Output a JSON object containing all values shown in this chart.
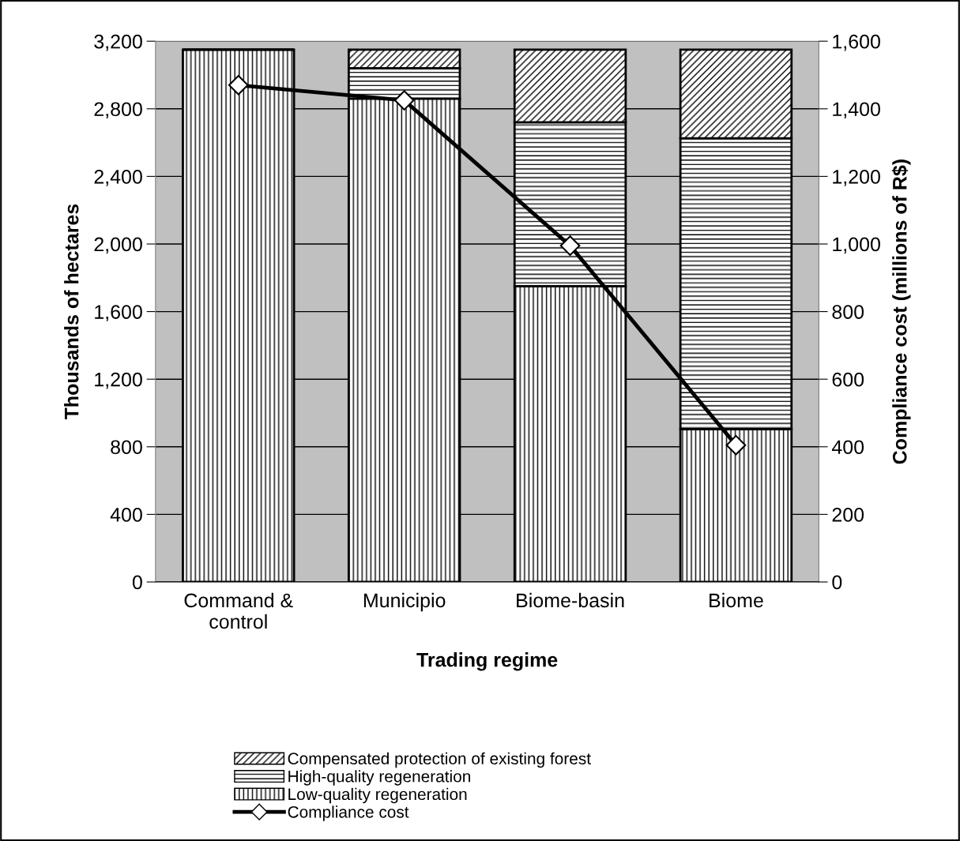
{
  "chart_data": {
    "type": "bar",
    "stacked": true,
    "xlabel": "Trading regime",
    "ylabel": "Thousands of hectares",
    "y2label": "Compliance cost (millions of R$)",
    "categories": [
      "Command &\ncontrol",
      "Municipio",
      "Biome-basin",
      "Biome"
    ],
    "series": [
      {
        "name": "Low-quality regeneration",
        "color": "#000000",
        "values": [
          3150,
          2860,
          1750,
          905
        ]
      },
      {
        "name": "High-quality regeneration",
        "color": "#000000",
        "values": [
          0,
          180,
          970,
          1720
        ]
      },
      {
        "name": "Compensated protection of existing forest",
        "color": "#000000",
        "values": [
          0,
          110,
          430,
          525
        ]
      },
      {
        "name": "Compliance cost",
        "type": "line",
        "axis": "y2",
        "color": "#000000",
        "marker": "diamond",
        "values": [
          1470,
          1425,
          995,
          405
        ]
      }
    ],
    "ylim": [
      0,
      3200
    ],
    "yticks": [
      {
        "value": 0,
        "label": "0"
      },
      {
        "value": 400,
        "label": "400"
      },
      {
        "value": 800,
        "label": "800"
      },
      {
        "value": 1200,
        "label": "1,200"
      },
      {
        "value": 1600,
        "label": "1,600"
      },
      {
        "value": 2000,
        "label": "2,000"
      },
      {
        "value": 2400,
        "label": "2,400"
      },
      {
        "value": 2800,
        "label": "2,800"
      },
      {
        "value": 3200,
        "label": "3,200"
      }
    ],
    "y2lim": [
      0,
      1600
    ],
    "y2ticks": [
      {
        "value": 0,
        "label": "0"
      },
      {
        "value": 200,
        "label": "200"
      },
      {
        "value": 400,
        "label": "400"
      },
      {
        "value": 600,
        "label": "600"
      },
      {
        "value": 800,
        "label": "800"
      },
      {
        "value": 1000,
        "label": "1,000"
      },
      {
        "value": 1200,
        "label": "1,200"
      },
      {
        "value": 1400,
        "label": "1,400"
      },
      {
        "value": 1600,
        "label": "1,600"
      }
    ],
    "grid": "y",
    "legend": "bottom"
  }
}
